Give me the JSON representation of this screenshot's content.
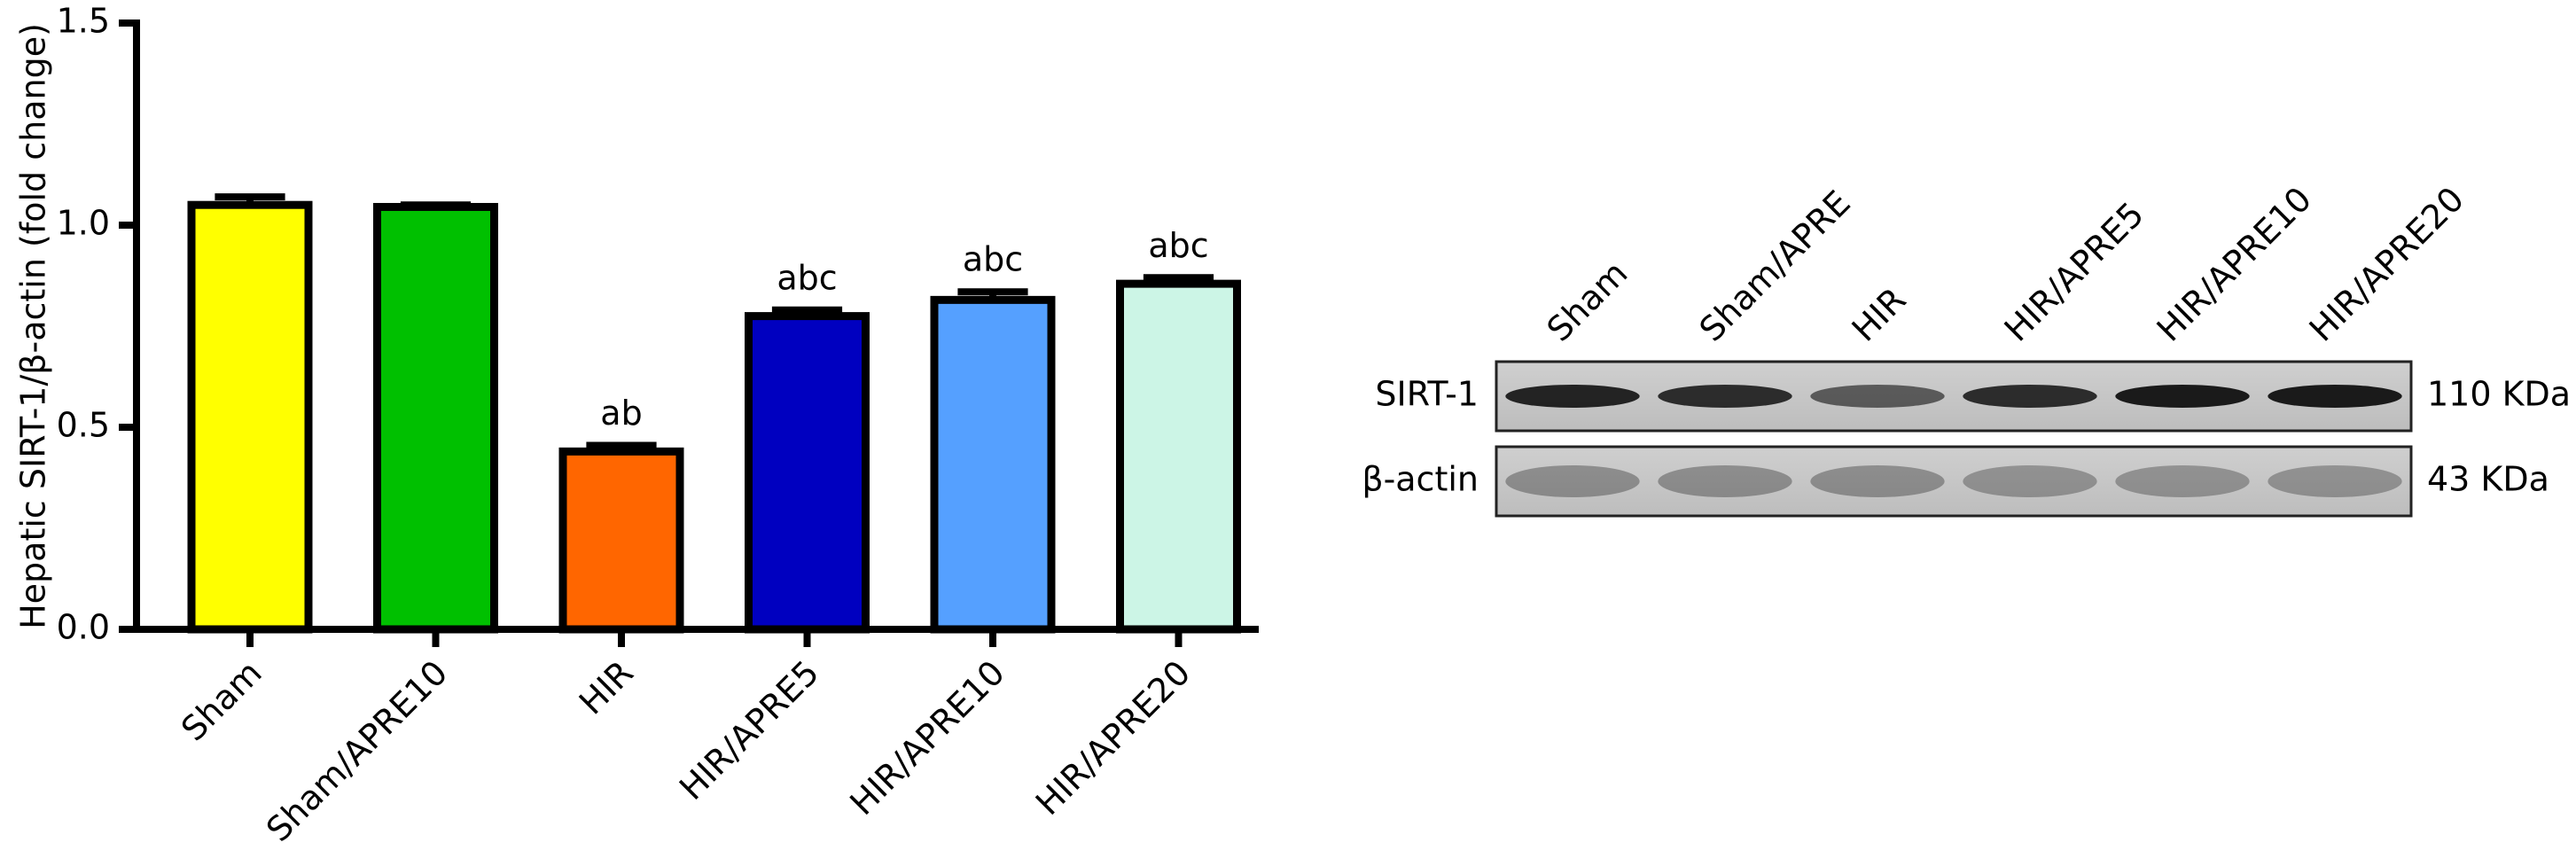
{
  "chart_data": {
    "type": "bar",
    "y_label": "Hepatic SIRT-1/β-actin (fold change)",
    "categories": [
      "Sham",
      "Sham/APRE10",
      "HIR",
      "HIR/APRE5",
      "HIR/APRE10",
      "HIR/APRE20"
    ],
    "values": [
      1.05,
      1.045,
      0.44,
      0.775,
      0.815,
      0.855
    ],
    "errors": [
      0.02,
      0.005,
      0.015,
      0.015,
      0.02,
      0.015
    ],
    "annotations": [
      null,
      null,
      "ab",
      "abc",
      "abc",
      "abc"
    ],
    "colors": [
      "#ffff00",
      "#00c000",
      "#ff6600",
      "#0000c0",
      "#55a0ff",
      "#ccf5e6"
    ],
    "ylim": [
      0,
      1.5
    ],
    "yticks": [
      {
        "value": 0,
        "label": "0.0"
      },
      0.5,
      {
        "value": 1,
        "label": "1.0"
      },
      1.5
    ]
  },
  "blot": {
    "lanes": [
      "Sham",
      "Sham/APRE",
      "HIR",
      "HIR/APRE5",
      "HIR/APRE10",
      "HIR/APRE20"
    ],
    "rows": [
      {
        "label": "SIRT-1",
        "size": "110 KDa"
      },
      {
        "label": "β-actin",
        "size": "43 KDa"
      }
    ]
  }
}
